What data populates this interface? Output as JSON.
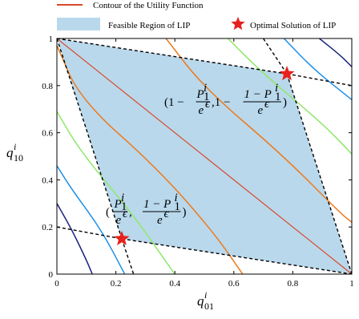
{
  "chart_data": {
    "type": "line",
    "xlabel": "q",
    "xlabel_sup": "i",
    "xlabel_sub": "01",
    "ylabel": "q",
    "ylabel_sup": "i",
    "ylabel_sub": "10",
    "xlim": [
      0,
      1
    ],
    "ylim": [
      0,
      1
    ],
    "xticks": [
      "0",
      "0.2",
      "0.4",
      "0.6",
      "0.8",
      "1"
    ],
    "yticks": [
      "0",
      "0.2",
      "0.4",
      "0.6",
      "0.8",
      "1"
    ],
    "grid": false,
    "legend": {
      "placement": "top",
      "entries": [
        {
          "label": "Contour of the Utility Function",
          "marker": "line",
          "color": "#d94a2b"
        },
        {
          "label": "Feasible Region of LIP",
          "marker": "patch",
          "color": "#b9d8ec"
        },
        {
          "label": "Optimal Solution of LIP",
          "marker": "star",
          "color": "#e8201c"
        }
      ]
    },
    "feasible_region": [
      [
        0,
        1
      ],
      [
        0.78,
        0.85
      ],
      [
        1,
        0
      ],
      [
        0.22,
        0.15
      ]
    ],
    "optimal_points": [
      [
        0.78,
        0.85
      ],
      [
        0.22,
        0.15
      ]
    ],
    "annotations": {
      "upper": {
        "prefix": "(1 − ",
        "num1": "P",
        "num1_sup": "i",
        "num1_sub": "1",
        "den": "e",
        "den_sup": "ϵ",
        "mid": ",1 − ",
        "num2": "1 − P",
        "num2_sup": "i",
        "num2_sub": "1",
        "suffix": ")",
        "at": [
          0.78,
          0.85
        ]
      },
      "lower": {
        "prefix": "(",
        "num1": "P",
        "num1_sup": "i",
        "num1_sub": "1",
        "den": "e",
        "den_sup": "ϵ",
        "mid": ", ",
        "num2": "1 − P",
        "num2_sup": "i",
        "num2_sub": "1",
        "suffix": ")",
        "at": [
          0.22,
          0.15
        ]
      }
    },
    "diagonal": {
      "from": [
        0,
        1
      ],
      "to": [
        1,
        0
      ],
      "color": "#d94a2b"
    },
    "contour_colors": {
      "navy": "#1a237e",
      "blue": "#1e90e8",
      "green": "#8ee86a",
      "orange": "#ec7a1c",
      "red": "#d94a2b"
    }
  }
}
